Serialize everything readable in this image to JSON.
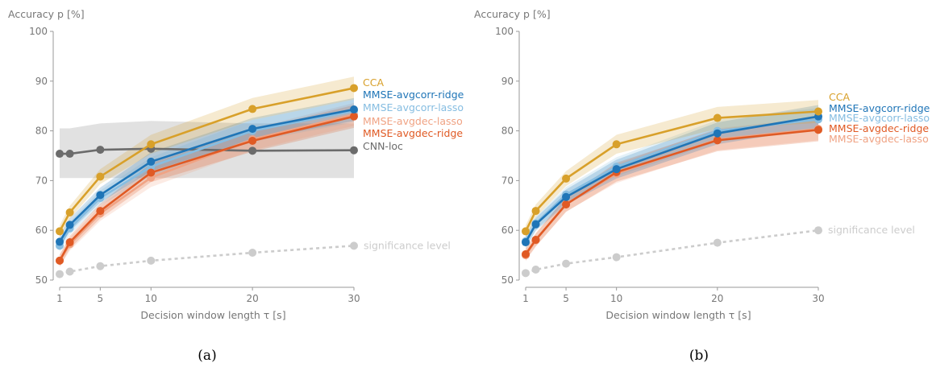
{
  "figure": {
    "panels": [
      "(a)",
      "(b)"
    ]
  },
  "chart_data": [
    {
      "type": "line",
      "panel_label": "(a)",
      "xlabel": "Decision window length τ [s]",
      "ylabel": "Accuracy p [%]",
      "xlim": [
        1,
        30
      ],
      "ylim": [
        50,
        100
      ],
      "xticks": [
        1,
        5,
        10,
        20,
        30
      ],
      "yticks": [
        50,
        60,
        70,
        80,
        90,
        100
      ],
      "grid": false,
      "series": [
        {
          "name": "CNN-loc",
          "color": "#6b6b6b",
          "x": [
            1,
            2,
            5,
            10,
            20,
            30
          ],
          "y": [
            75.4,
            75.4,
            76.2,
            76.4,
            76.0,
            76.1
          ],
          "band_low": [
            70.5,
            70.5,
            70.5,
            70.5,
            70.5,
            70.5
          ],
          "band_high": [
            80.5,
            80.5,
            81.5,
            82.0,
            81.5,
            81.5
          ]
        },
        {
          "name": "significance level",
          "color": "#cccccc",
          "dashed": true,
          "x": [
            1,
            2,
            5,
            10,
            20,
            30
          ],
          "y": [
            51.2,
            51.7,
            52.8,
            53.9,
            55.5,
            56.9
          ]
        },
        {
          "name": "MMSE-avgdec-lasso",
          "color": "#f0a384",
          "x": [
            1,
            2,
            5,
            10,
            20,
            30
          ],
          "y": [
            53.9,
            57.2,
            63.4,
            70.6,
            78.3,
            83.3
          ]
        },
        {
          "name": "MMSE-avgcorr-lasso",
          "color": "#86bde1",
          "x": [
            1,
            2,
            5,
            10,
            20,
            30
          ],
          "y": [
            56.9,
            60.4,
            66.5,
            72.8,
            80.0,
            84.0
          ]
        },
        {
          "name": "MMSE-avgdec-ridge",
          "color": "#e05a24",
          "x": [
            1,
            2,
            5,
            10,
            20,
            30
          ],
          "y": [
            53.9,
            57.6,
            63.9,
            71.6,
            78.0,
            82.9
          ]
        },
        {
          "name": "MMSE-avgcorr-ridge",
          "color": "#1f75b7",
          "x": [
            1,
            2,
            5,
            10,
            20,
            30
          ],
          "y": [
            57.7,
            61.1,
            67.1,
            73.8,
            80.4,
            84.3
          ]
        },
        {
          "name": "CCA",
          "color": "#d8a02a",
          "x": [
            1,
            2,
            5,
            10,
            20,
            30
          ],
          "y": [
            59.8,
            63.6,
            70.8,
            77.3,
            84.4,
            88.6
          ]
        }
      ],
      "legend": [
        {
          "label": "CCA",
          "color": "#d8a02a"
        },
        {
          "label": "MMSE-avgcorr-ridge",
          "color": "#1f75b7"
        },
        {
          "label": "MMSE-avgcorr-lasso",
          "color": "#86bde1"
        },
        {
          "label": "MMSE-avgdec-lasso",
          "color": "#f0a384"
        },
        {
          "label": "MMSE-avgdec-ridge",
          "color": "#e05a24"
        },
        {
          "label": "CNN-loc",
          "color": "#6b6b6b"
        }
      ],
      "annotations": [
        {
          "text": "significance level",
          "x": 30,
          "y": 56.9
        }
      ]
    },
    {
      "type": "line",
      "panel_label": "(b)",
      "xlabel": "Decision window length τ [s]",
      "ylabel": "Accuracy p [%]",
      "xlim": [
        1,
        30
      ],
      "ylim": [
        50,
        100
      ],
      "xticks": [
        1,
        5,
        10,
        20,
        30
      ],
      "yticks": [
        50,
        60,
        70,
        80,
        90,
        100
      ],
      "grid": false,
      "series": [
        {
          "name": "significance level",
          "color": "#cccccc",
          "dashed": true,
          "x": [
            1,
            2,
            5,
            10,
            20,
            30
          ],
          "y": [
            51.4,
            52.1,
            53.3,
            54.6,
            57.5,
            60.0
          ]
        },
        {
          "name": "MMSE-avgdec-lasso",
          "color": "#f0a384",
          "x": [
            1,
            2,
            5,
            10,
            20,
            30
          ],
          "y": [
            55.0,
            58.0,
            65.3,
            71.4,
            78.3,
            80.4
          ]
        },
        {
          "name": "MMSE-avgcorr-lasso",
          "color": "#86bde1",
          "x": [
            1,
            2,
            5,
            10,
            20,
            30
          ],
          "y": [
            57.8,
            61.4,
            67.2,
            72.8,
            80.0,
            82.3
          ]
        },
        {
          "name": "MMSE-avgdec-ridge",
          "color": "#e05a24",
          "x": [
            1,
            2,
            5,
            10,
            20,
            30
          ],
          "y": [
            55.2,
            58.1,
            65.2,
            71.7,
            78.1,
            80.2
          ]
        },
        {
          "name": "MMSE-avgcorr-ridge",
          "color": "#1f75b7",
          "x": [
            1,
            2,
            5,
            10,
            20,
            30
          ],
          "y": [
            57.6,
            61.2,
            66.7,
            72.3,
            79.5,
            82.9
          ]
        },
        {
          "name": "CCA",
          "color": "#d8a02a",
          "x": [
            1,
            2,
            5,
            10,
            20,
            30
          ],
          "y": [
            59.8,
            63.9,
            70.4,
            77.3,
            82.6,
            83.9
          ]
        }
      ],
      "legend": [
        {
          "label": "CCA",
          "color": "#d8a02a"
        },
        {
          "label": "MMSE-avgcorr-ridge",
          "color": "#1f75b7"
        },
        {
          "label": "MMSE-avgcorr-lasso",
          "color": "#86bde1"
        },
        {
          "label": "MMSE-avgdec-ridge",
          "color": "#e05a24"
        },
        {
          "label": "MMSE-avgdec-lasso",
          "color": "#f0a384"
        }
      ],
      "annotations": [
        {
          "text": "significance level",
          "x": 30,
          "y": 60.0
        }
      ]
    }
  ]
}
